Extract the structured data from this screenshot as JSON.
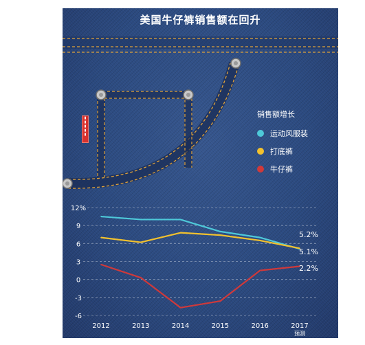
{
  "title": "美国牛仔裤销售额在回升",
  "legend": {
    "title": "销售额增长",
    "items": [
      {
        "label": "运动风服装",
        "color": "#4ec9d9"
      },
      {
        "label": "打底裤",
        "color": "#f2c12e"
      },
      {
        "label": "牛仔裤",
        "color": "#d0393a"
      }
    ]
  },
  "chart_data": {
    "type": "line",
    "x": [
      "2012",
      "2013",
      "2014",
      "2015",
      "2016",
      "2017"
    ],
    "x_sublabels": [
      "",
      "",
      "",
      "",
      "",
      "预测"
    ],
    "ylim": [
      -6,
      12
    ],
    "yticks": [
      {
        "value": 12,
        "label": "12%"
      },
      {
        "value": 9,
        "label": "9"
      },
      {
        "value": 6,
        "label": "6"
      },
      {
        "value": 3,
        "label": "3"
      },
      {
        "value": 0,
        "label": "0"
      },
      {
        "value": -3,
        "label": "-3"
      },
      {
        "value": -6,
        "label": "-6"
      }
    ],
    "grid": true,
    "series": [
      {
        "name": "运动风服装",
        "color": "#4ec9d9",
        "values": [
          10.5,
          10.0,
          10.0,
          8.0,
          7.0,
          5.1
        ],
        "end_label": "5.1%"
      },
      {
        "name": "打底裤",
        "color": "#f2c12e",
        "values": [
          7.0,
          6.2,
          7.8,
          7.4,
          6.5,
          5.2
        ],
        "end_label": "5.2%"
      },
      {
        "name": "牛仔裤",
        "color": "#d0393a",
        "values": [
          2.5,
          0.3,
          -4.7,
          -3.6,
          1.5,
          2.2
        ],
        "end_label": "2.2%"
      }
    ]
  }
}
